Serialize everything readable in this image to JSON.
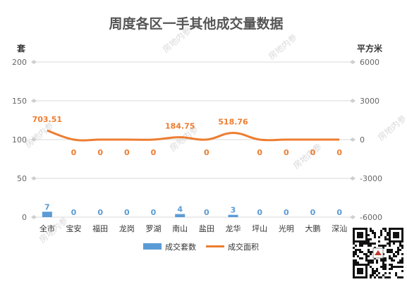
{
  "chart_data": {
    "type": "bar",
    "title": "周度各区一手其他成交量数据",
    "categories": [
      "全市",
      "宝安",
      "福田",
      "龙岗",
      "罗湖",
      "南山",
      "盐田",
      "龙华",
      "坪山",
      "光明",
      "大鹏",
      "深汕"
    ],
    "y_left": {
      "label": "套",
      "ylim": [
        0,
        200
      ],
      "ticks": [
        0,
        50,
        100,
        150,
        200
      ]
    },
    "y_right": {
      "label": "平方米",
      "ylim": [
        -6000,
        6000
      ],
      "ticks": [
        -6000,
        -3000,
        0,
        3000,
        6000
      ]
    },
    "series": [
      {
        "name": "成交套数",
        "type": "bar",
        "axis": "left",
        "color": "#5b9bd5",
        "values": [
          7,
          0,
          0,
          0,
          0,
          4,
          0,
          3,
          0,
          0,
          0,
          0
        ],
        "labels": [
          "7",
          "0",
          "0",
          "0",
          "0",
          "4",
          "0",
          "3",
          "0",
          "0",
          "0",
          "0"
        ]
      },
      {
        "name": "成交面积",
        "type": "line",
        "axis": "right",
        "color": "#ed7d31",
        "values": [
          703.51,
          0,
          0,
          0,
          0,
          184.75,
          0,
          518.76,
          0,
          0,
          0,
          0
        ],
        "labels": [
          "703.51",
          "0",
          "0",
          "0",
          "0",
          "184.75",
          "0",
          "518.76",
          "0",
          "0",
          "0",
          "0"
        ]
      }
    ],
    "legend_position": "bottom",
    "grid": true
  },
  "watermark": "房地内参"
}
